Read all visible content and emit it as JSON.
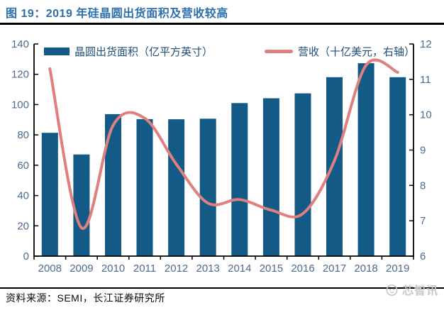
{
  "header": {
    "title": "图 19：2019 年硅晶圆出货面积及营收较高"
  },
  "chart_data": {
    "type": "bar",
    "subtype": "combo-bar-line",
    "title": "图 19：2019 年硅晶圆出货面积及营收较高",
    "categories": [
      "2008",
      "2009",
      "2010",
      "2011",
      "2012",
      "2013",
      "2014",
      "2015",
      "2016",
      "2017",
      "2018",
      "2019"
    ],
    "series": [
      {
        "name": "晶圆出货面积（亿平方英寸）",
        "type": "bar",
        "axis": "left",
        "color": "#145a86",
        "values": [
          81.4,
          67.1,
          93.7,
          90.4,
          90.3,
          90.7,
          101.0,
          104.2,
          107.4,
          118.1,
          127.3,
          118.1
        ]
      },
      {
        "name": "营收（十亿美元，右轴）",
        "type": "line",
        "axis": "right",
        "color": "#e07f80",
        "smooth": true,
        "values": [
          11.3,
          6.8,
          9.7,
          9.9,
          8.6,
          7.5,
          7.6,
          7.3,
          7.2,
          8.7,
          11.4,
          11.2
        ]
      }
    ],
    "axes": {
      "left": {
        "min": 0,
        "max": 140,
        "step": 20,
        "ticks": [
          0,
          20,
          40,
          60,
          80,
          100,
          120,
          140
        ]
      },
      "right": {
        "min": 6,
        "max": 12,
        "step": 1,
        "ticks": [
          6,
          7,
          8,
          9,
          10,
          11,
          12
        ]
      }
    },
    "xlabel": "",
    "ylabel_left": "亿平方英寸",
    "ylabel_right": "十亿美元",
    "grid": false,
    "legend_position": "top-inside"
  },
  "footer": {
    "source": "资料来源：SEMI，长江证券研究所",
    "watermark": "芯智讯"
  },
  "colors": {
    "bar": "#145a86",
    "line": "#e07f80",
    "title": "#2d70ad",
    "axis_label": "#4e6a92",
    "legend_text": "#1f4e79",
    "rule": "#000000",
    "watermark": "#c8c8c8"
  }
}
